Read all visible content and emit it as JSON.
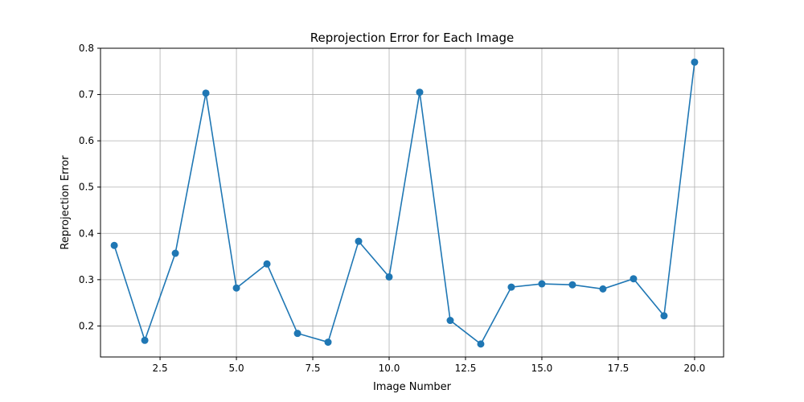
{
  "chart_data": {
    "type": "line",
    "title": "Reprojection Error for Each Image",
    "xlabel": "Image Number",
    "ylabel": "Reprojection Error",
    "xlim": [
      0.55,
      20.95
    ],
    "ylim": [
      0.133,
      0.8
    ],
    "xticks": [
      2.5,
      5.0,
      7.5,
      10.0,
      12.5,
      15.0,
      17.5,
      20.0
    ],
    "xtick_labels": [
      "2.5",
      "5.0",
      "7.5",
      "10.0",
      "12.5",
      "15.0",
      "17.5",
      "20.0"
    ],
    "yticks": [
      0.2,
      0.3,
      0.4,
      0.5,
      0.6,
      0.7,
      0.8
    ],
    "ytick_labels": [
      "0.2",
      "0.3",
      "0.4",
      "0.5",
      "0.6",
      "0.7",
      "0.8"
    ],
    "grid": true,
    "marker": "circle",
    "color": "#1f77b4",
    "series": [
      {
        "x": [
          1,
          2,
          3,
          4,
          5,
          6,
          7,
          8,
          9,
          10,
          11,
          12,
          13,
          14,
          15,
          16,
          17,
          18,
          19,
          20
        ],
        "y": [
          0.374,
          0.169,
          0.357,
          0.703,
          0.282,
          0.334,
          0.184,
          0.165,
          0.383,
          0.306,
          0.705,
          0.212,
          0.161,
          0.284,
          0.291,
          0.289,
          0.28,
          0.302,
          0.222,
          0.77
        ]
      }
    ]
  }
}
